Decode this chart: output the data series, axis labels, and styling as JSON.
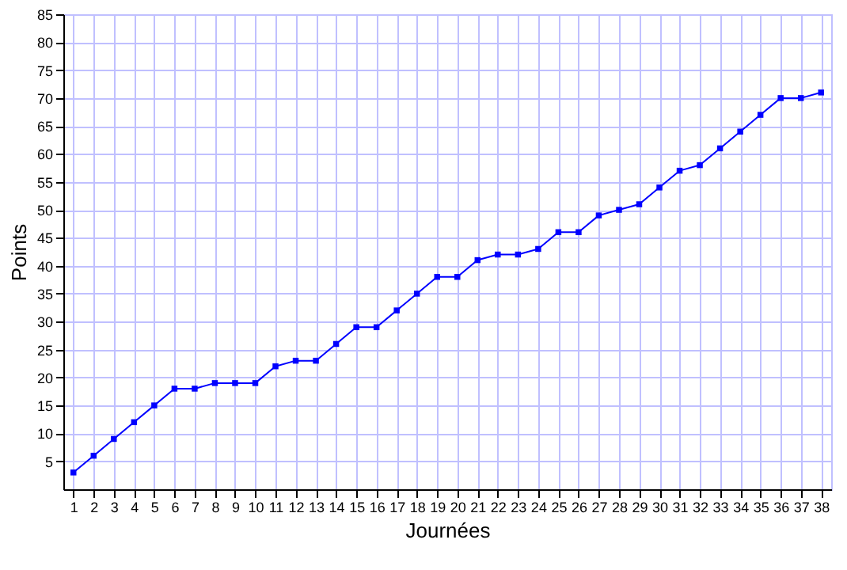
{
  "chart_data": {
    "type": "line",
    "xlabel": "Journées",
    "ylabel": "Points",
    "x": [
      1,
      2,
      3,
      4,
      5,
      6,
      7,
      8,
      9,
      10,
      11,
      12,
      13,
      14,
      15,
      16,
      17,
      18,
      19,
      20,
      21,
      22,
      23,
      24,
      25,
      26,
      27,
      28,
      29,
      30,
      31,
      32,
      33,
      34,
      35,
      36,
      37,
      38
    ],
    "series": [
      {
        "color": "#0000ff",
        "values": [
          3,
          6,
          9,
          12,
          15,
          18,
          18,
          19,
          19,
          19,
          22,
          23,
          23,
          26,
          29,
          29,
          32,
          35,
          38,
          38,
          41,
          42,
          42,
          43,
          46,
          46,
          49,
          50,
          51,
          54,
          57,
          58,
          61,
          64,
          67,
          70,
          70,
          71
        ]
      }
    ],
    "xlim": [
      0.5,
      38.5
    ],
    "xticks": [
      1,
      2,
      3,
      4,
      5,
      6,
      7,
      8,
      9,
      10,
      11,
      12,
      13,
      14,
      15,
      16,
      17,
      18,
      19,
      20,
      21,
      22,
      23,
      24,
      25,
      26,
      27,
      28,
      29,
      30,
      31,
      32,
      33,
      34,
      35,
      36,
      37,
      38
    ],
    "ylim": [
      0,
      85
    ],
    "yticks": [
      5,
      10,
      15,
      20,
      25,
      30,
      35,
      40,
      45,
      50,
      55,
      60,
      65,
      70,
      75,
      80,
      85
    ],
    "grid": true,
    "marker": "square",
    "line_style": "solid"
  }
}
